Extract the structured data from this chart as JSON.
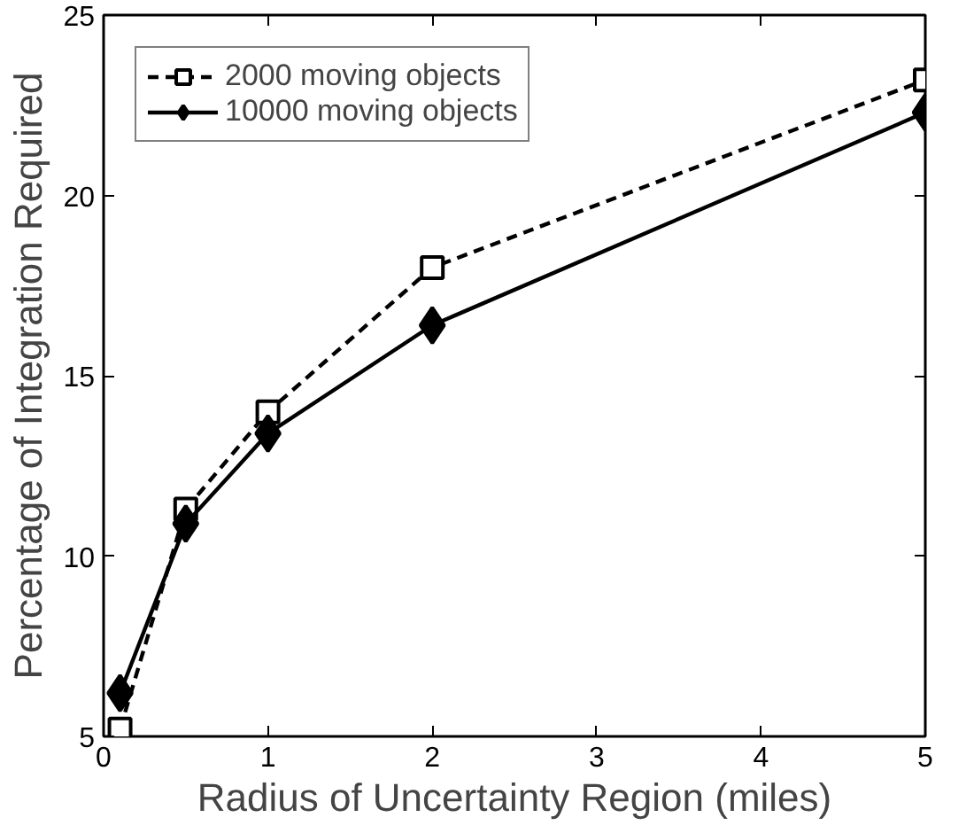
{
  "chart_data": {
    "type": "line",
    "xlabel": "Radius of Uncertainty Region (miles)",
    "ylabel": "Percentage of Integration Required",
    "x": [
      0.1,
      0.5,
      1,
      2,
      5
    ],
    "series": [
      {
        "name": "2000 moving objects",
        "color": "#000000",
        "values": [
          5.2,
          11.3,
          14.0,
          18.0,
          23.2
        ],
        "marker": "square",
        "line_style": "dashed"
      },
      {
        "name": "10000 moving objects",
        "color": "#000000",
        "values": [
          6.2,
          10.9,
          13.4,
          16.4,
          22.3
        ],
        "marker": "diamond",
        "line_style": "solid"
      }
    ],
    "xlim": [
      0,
      5
    ],
    "ylim": [
      5,
      25
    ],
    "xticks": [
      0,
      1,
      2,
      3,
      4,
      5
    ],
    "yticks": [
      5,
      10,
      15,
      20,
      25
    ],
    "grid": false,
    "legend": "top left"
  }
}
